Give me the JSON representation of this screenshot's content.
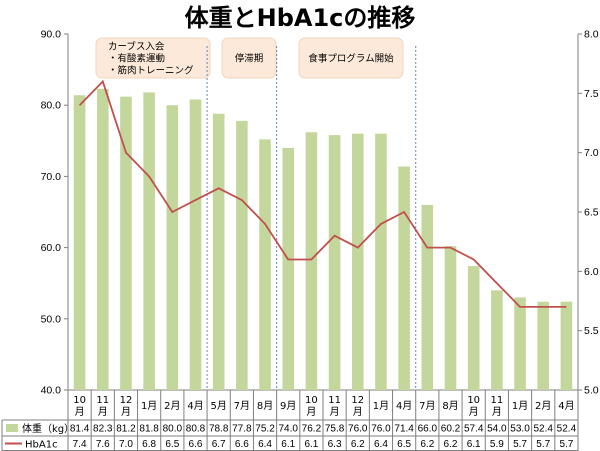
{
  "chart_data": {
    "type": "bar",
    "title": "体重とHbA1cの推移",
    "categories": [
      "10月",
      "11月",
      "12月",
      "1月",
      "2月",
      "4月",
      "5月",
      "7月",
      "8月",
      "9月",
      "10月",
      "11月",
      "12月",
      "1月",
      "4月",
      "7月",
      "8月",
      "10月",
      "11月",
      "1月",
      "2月",
      "4月"
    ],
    "series": [
      {
        "name": "体重（kg）",
        "kind": "bar",
        "axis": "left",
        "color": "#c3d69b",
        "values": [
          81.4,
          82.3,
          81.2,
          81.8,
          80.0,
          80.8,
          78.8,
          77.8,
          75.2,
          74.0,
          76.2,
          75.8,
          76.0,
          76.0,
          71.4,
          66.0,
          60.2,
          57.4,
          54.0,
          53.0,
          52.4,
          52.4
        ]
      },
      {
        "name": "HbA1c",
        "kind": "line",
        "axis": "right",
        "color": "#c0504d",
        "values": [
          7.4,
          7.6,
          7.0,
          6.8,
          6.5,
          6.6,
          6.7,
          6.6,
          6.4,
          6.1,
          6.1,
          6.3,
          6.2,
          6.4,
          6.5,
          6.2,
          6.2,
          6.1,
          5.9,
          5.7,
          5.7,
          5.7
        ]
      }
    ],
    "ylim_left": [
      40,
      90
    ],
    "yticks_left": [
      "40.0",
      "50.0",
      "60.0",
      "70.0",
      "80.0",
      "90.0"
    ],
    "ylim_right": [
      5.0,
      8.0
    ],
    "yticks_right": [
      "5.0",
      "5.5",
      "6.0",
      "6.5",
      "7.0",
      "7.5",
      "8.0"
    ],
    "table": {
      "weight": [
        "81.4",
        "82.3",
        "81.2",
        "81.8",
        "80.0",
        "80.8",
        "78.8",
        "77.8",
        "75.2",
        "74.0",
        "76.2",
        "75.8",
        "76.0",
        "76.0",
        "71.4",
        "66.0",
        "60.2",
        "57.4",
        "54.0",
        "53.0",
        "52.4",
        "52.4"
      ],
      "hba1c": [
        "7.4",
        "7.6",
        "7.0",
        "6.8",
        "6.5",
        "6.6",
        "6.7",
        "6.6",
        "6.4",
        "6.1",
        "6.1",
        "6.3",
        "6.2",
        "6.4",
        "6.5",
        "6.2",
        "6.2",
        "6.1",
        "5.9",
        "5.7",
        "5.7",
        "5.7"
      ]
    },
    "annotations": [
      {
        "lines": [
          "カーブス入会",
          "・有酸素運動",
          "・筋肉トレーニング"
        ]
      },
      {
        "lines": [
          "停滞期"
        ]
      },
      {
        "lines": [
          "食事プログラム開始"
        ]
      }
    ],
    "dividers_after_index": [
      5,
      8,
      14
    ],
    "grid": false
  }
}
